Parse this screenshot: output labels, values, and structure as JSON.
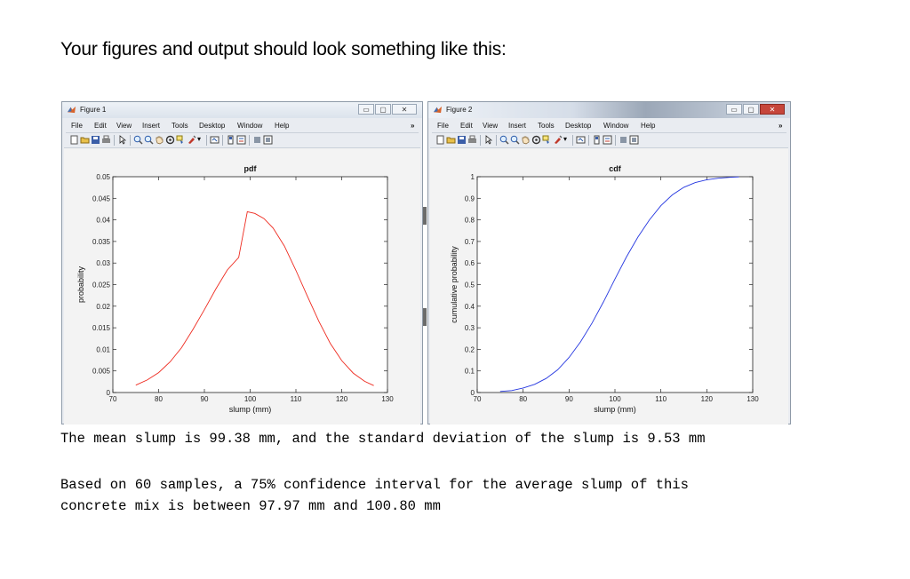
{
  "heading": "Your figures and output should look something like this:",
  "colors": {
    "pdf_line": "#ee2a1f",
    "cdf_line": "#2436e0",
    "window_bg": "#e9ecf1",
    "plot_bg": "#f3f3f3"
  },
  "menu": [
    "File",
    "Edit",
    "View",
    "Insert",
    "Tools",
    "Desktop",
    "Window",
    "Help"
  ],
  "toolbar_icons": [
    "new-file-icon",
    "open-folder-icon",
    "save-icon",
    "print-icon",
    "pointer-icon",
    "zoom-in-icon",
    "zoom-out-icon",
    "pan-icon",
    "rotate-icon",
    "data-cursor-icon",
    "brush-icon",
    "link-icon",
    "colorbar-icon",
    "legend-icon",
    "hide-plot-tools-icon",
    "show-plot-tools-icon"
  ],
  "window_buttons": {
    "minimize": "▭",
    "maximize": "▢",
    "close": "✕"
  },
  "figure1": {
    "title": "Figure 1",
    "chart_data": {
      "type": "line",
      "title": "pdf",
      "xlabel": "slump (mm)",
      "ylabel": "probability",
      "xlim": [
        70,
        130
      ],
      "ylim": [
        0,
        0.05
      ],
      "xticks": [
        70,
        80,
        90,
        100,
        110,
        120,
        130
      ],
      "yticks": [
        0,
        0.005,
        0.01,
        0.015,
        0.02,
        0.025,
        0.03,
        0.035,
        0.04,
        0.045,
        0.05
      ],
      "ytick_labels": [
        "0",
        "0.005",
        "0.01",
        "0.015",
        "0.02",
        "0.025",
        "0.03",
        "0.035",
        "0.04",
        "0.045",
        "0.05"
      ],
      "grid": false,
      "series": [
        {
          "x": [
            75,
            77.5,
            80,
            82.5,
            85,
            87.5,
            90,
            92.5,
            95,
            97.5,
            99.38,
            101,
            103,
            105,
            107.5,
            110,
            112.5,
            115,
            117.5,
            120,
            122.5,
            125,
            127
          ],
          "y": [
            0.0017,
            0.0029,
            0.0046,
            0.0071,
            0.0104,
            0.0146,
            0.0192,
            0.024,
            0.0284,
            0.0313,
            0.0419,
            0.0415,
            0.0403,
            0.0381,
            0.0339,
            0.0283,
            0.0223,
            0.0165,
            0.0114,
            0.0074,
            0.0045,
            0.0026,
            0.0016
          ]
        }
      ]
    }
  },
  "figure2": {
    "title": "Figure 2",
    "chart_data": {
      "type": "line",
      "title": "cdf",
      "xlabel": "slump (mm)",
      "ylabel": "cumulative probability",
      "xlim": [
        70,
        130
      ],
      "ylim": [
        0,
        1
      ],
      "xticks": [
        70,
        80,
        90,
        100,
        110,
        120,
        130
      ],
      "yticks": [
        0,
        0.1,
        0.2,
        0.3,
        0.4,
        0.5,
        0.6,
        0.7,
        0.8,
        0.9,
        1
      ],
      "ytick_labels": [
        "0",
        "0.1",
        "0.2",
        "0.3",
        "0.4",
        "0.5",
        "0.6",
        "0.7",
        "0.8",
        "0.9",
        "1"
      ],
      "grid": false,
      "series": [
        {
          "x": [
            75,
            77.5,
            80,
            82.5,
            85,
            87.5,
            90,
            92.5,
            95,
            97.5,
            100,
            102.5,
            105,
            107.5,
            110,
            112.5,
            115,
            117.5,
            120,
            122.5,
            125,
            127
          ],
          "y": [
            0.005,
            0.009,
            0.021,
            0.038,
            0.065,
            0.105,
            0.162,
            0.235,
            0.322,
            0.42,
            0.526,
            0.628,
            0.72,
            0.8,
            0.866,
            0.916,
            0.951,
            0.973,
            0.986,
            0.993,
            0.997,
            0.999
          ]
        }
      ]
    }
  },
  "output": {
    "line1": "The mean slump is 99.38 mm, and the standard deviation of the slump is 9.53 mm",
    "line2": "Based on 60 samples, a 75% confidence interval for the average slump of this",
    "line3": "concrete mix is between 97.97 mm and 100.80 mm"
  }
}
